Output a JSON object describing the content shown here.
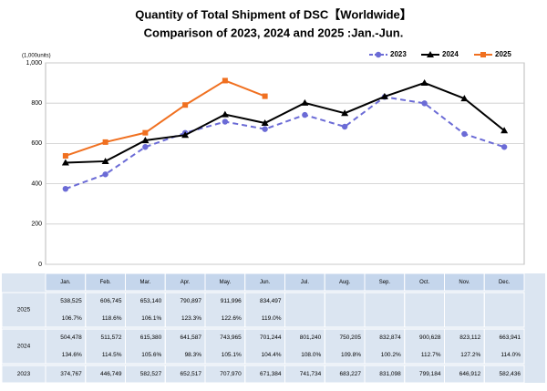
{
  "chart_data": {
    "type": "line",
    "title": "Quantity of Total Shipment of DSC【Worldwide】",
    "subtitle": "Comparison of 2023, 2024 and 2025 :Jan.-Jun.",
    "y_axis_label": "(1,000units)",
    "categories": [
      "Jan.",
      "Feb.",
      "Mar.",
      "Apr.",
      "May.",
      "Jun.",
      "Jul.",
      "Aug.",
      "Sep.",
      "Oct.",
      "Nov.",
      "Dec."
    ],
    "ylim": [
      0,
      1000
    ],
    "yticks": [
      0,
      200,
      400,
      600,
      800,
      {
        "value": 1000,
        "label": "1,000"
      }
    ],
    "grid": true,
    "legend": "top-right",
    "series": [
      {
        "name": "2023",
        "color": "#6b6bd6",
        "dash": true,
        "marker": "circle",
        "values": [
          374.767,
          446.749,
          582.527,
          652.517,
          707.97,
          671.384,
          741.734,
          683.227,
          831.098,
          799.184,
          646.912,
          582.436
        ],
        "value_labels": [
          "374,767",
          "446,749",
          "582,527",
          "652,517",
          "707,970",
          "671,384",
          "741,734",
          "683,227",
          "831,098",
          "799,184",
          "646,912",
          "582,436"
        ]
      },
      {
        "name": "2024",
        "color": "#000000",
        "dash": false,
        "marker": "triangle",
        "values": [
          504.478,
          511.572,
          615.38,
          641.587,
          743.965,
          701.244,
          801.24,
          750.205,
          832.874,
          900.628,
          823.112,
          663.941
        ],
        "value_labels": [
          "504,478",
          "511,572",
          "615,380",
          "641,587",
          "743,965",
          "701,244",
          "801,240",
          "750,205",
          "832,874",
          "900,628",
          "823,112",
          "663,941"
        ],
        "yoy": [
          "134.6%",
          "114.5%",
          "105.6%",
          "98.3%",
          "105.1%",
          "104.4%",
          "108.0%",
          "109.8%",
          "100.2%",
          "112.7%",
          "127.2%",
          "114.0%"
        ]
      },
      {
        "name": "2025",
        "color": "#f07020",
        "dash": false,
        "marker": "square",
        "values": [
          538.525,
          606.745,
          653.14,
          790.897,
          911.996,
          834.497,
          null,
          null,
          null,
          null,
          null,
          null
        ],
        "value_labels": [
          "538,525",
          "606,745",
          "653,140",
          "790,897",
          "911,996",
          "834,497",
          null,
          null,
          null,
          null,
          null,
          null
        ],
        "yoy": [
          "106.7%",
          "118.6%",
          "106.1%",
          "123.3%",
          "122.6%",
          "119.0%",
          null,
          null,
          null,
          null,
          null,
          null
        ]
      }
    ]
  }
}
